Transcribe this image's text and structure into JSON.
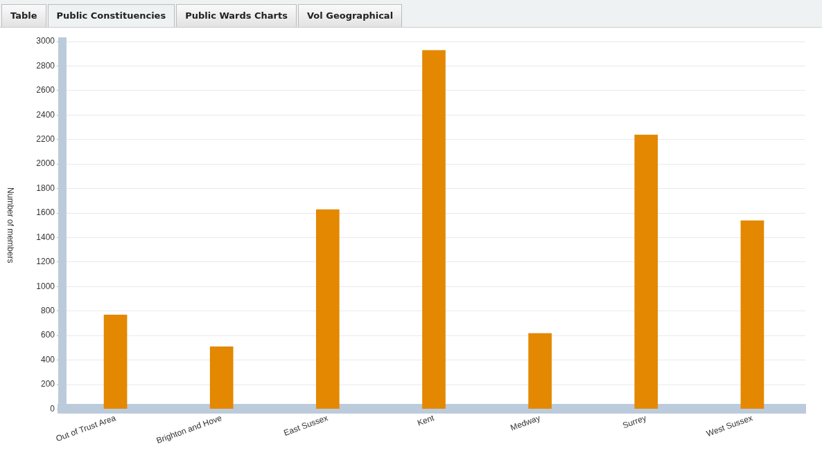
{
  "chart_data": {
    "type": "bar",
    "ylabel": "Number of members",
    "annotations": [
      "Table",
      "Public Constituencies",
      "Public Wards Charts",
      "Vol Geographical"
    ],
    "categories": [
      "Out of Trust Area",
      "Brighton and Hove",
      "East Sussex",
      "Kent",
      "Medway",
      "Surrey",
      "West Sussex"
    ],
    "values": [
      770,
      510,
      1630,
      2930,
      620,
      2240,
      1540
    ],
    "color": "#e38800",
    "ylim": [
      0,
      3000
    ],
    "yticks": [
      0,
      200,
      400,
      600,
      800,
      1000,
      1200,
      1400,
      1600,
      1800,
      2000,
      2200,
      2400,
      2600,
      2800,
      3000
    ],
    "grid": "y",
    "legend": false
  }
}
